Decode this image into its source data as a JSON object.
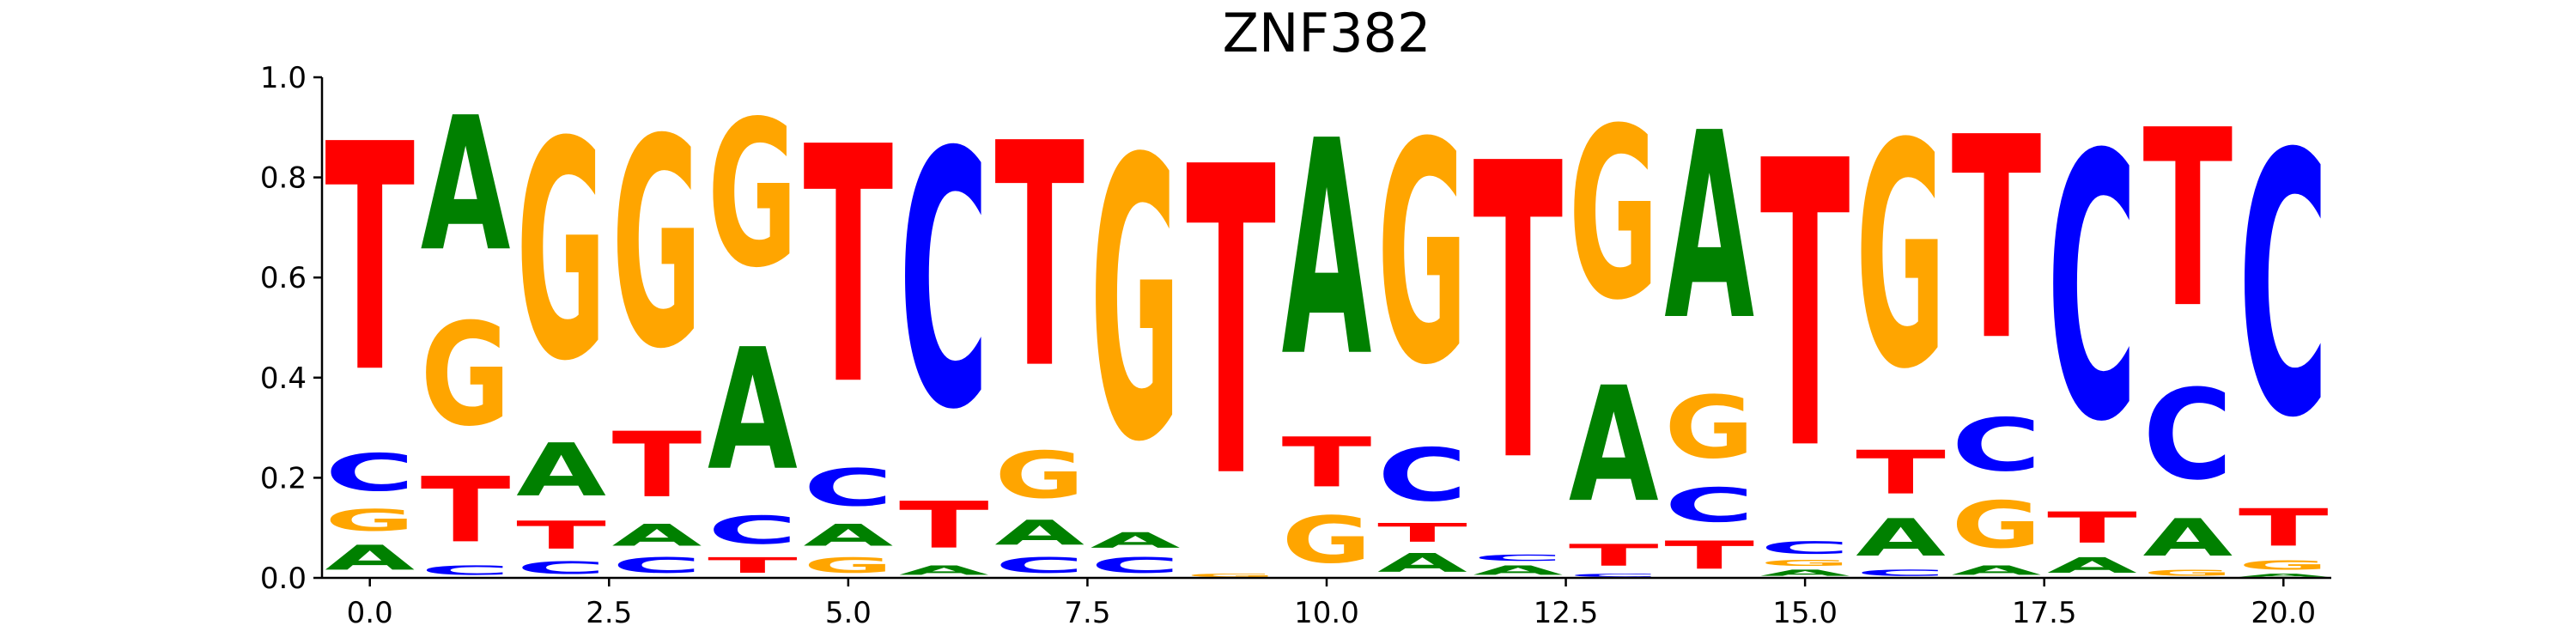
{
  "chart_data": {
    "type": "sequence-logo",
    "title": "ZNF382",
    "xlabel": "",
    "ylabel": "",
    "xlim": [
      -0.5,
      20.5
    ],
    "ylim": [
      0,
      1
    ],
    "x_ticks": [
      0,
      2.5,
      5,
      7.5,
      10,
      12.5,
      15,
      17.5,
      20
    ],
    "x_tick_labels": [
      "0.0",
      "2.5",
      "5.0",
      "7.5",
      "10.0",
      "12.5",
      "15.0",
      "17.5",
      "20.0"
    ],
    "y_ticks": [
      0,
      0.2,
      0.4,
      0.6,
      0.8,
      1.0
    ],
    "y_tick_labels": [
      "0.0",
      "0.2",
      "0.4",
      "0.6",
      "0.8",
      "1.0"
    ],
    "grid": false,
    "colors": {
      "A": "#008000",
      "C": "#0000ff",
      "G": "#ffa500",
      "T": "#ff0000"
    },
    "positions": [
      {
        "x": 0,
        "stack": [
          [
            "A",
            0.08
          ],
          [
            "G",
            0.07
          ],
          [
            "C",
            0.12
          ],
          [
            "T",
            0.73
          ]
        ]
      },
      {
        "x": 1,
        "stack": [
          [
            "C",
            0.03
          ],
          [
            "T",
            0.21
          ],
          [
            "G",
            0.33
          ],
          [
            "A",
            0.43
          ]
        ]
      },
      {
        "x": 2,
        "stack": [
          [
            "C",
            0.04
          ],
          [
            "T",
            0.09
          ],
          [
            "A",
            0.17
          ],
          [
            "G",
            0.7
          ]
        ]
      },
      {
        "x": 3,
        "stack": [
          [
            "C",
            0.05
          ],
          [
            "A",
            0.07
          ],
          [
            "T",
            0.21
          ],
          [
            "G",
            0.67
          ]
        ]
      },
      {
        "x": 4,
        "stack": [
          [
            "T",
            0.05
          ],
          [
            "C",
            0.09
          ],
          [
            "A",
            0.39
          ],
          [
            "G",
            0.47
          ]
        ]
      },
      {
        "x": 5,
        "stack": [
          [
            "G",
            0.05
          ],
          [
            "A",
            0.07
          ],
          [
            "C",
            0.12
          ],
          [
            "T",
            0.76
          ]
        ]
      },
      {
        "x": 6,
        "stack": [
          [
            "A",
            0.03
          ],
          [
            "T",
            0.15
          ],
          [
            "C",
            0.82
          ]
        ]
      },
      {
        "x": 7,
        "stack": [
          [
            "C",
            0.05
          ],
          [
            "A",
            0.08
          ],
          [
            "G",
            0.15
          ],
          [
            "T",
            0.72
          ]
        ]
      },
      {
        "x": 8,
        "stack": [
          [
            "C",
            0.05
          ],
          [
            "A",
            0.05
          ],
          [
            "G",
            0.9
          ]
        ]
      },
      {
        "x": 9,
        "stack": [
          [
            "G",
            0.01
          ],
          [
            "T",
            0.99
          ]
        ]
      },
      {
        "x": 10,
        "stack": [
          [
            "G",
            0.15
          ],
          [
            "T",
            0.16
          ],
          [
            "A",
            0.69
          ]
        ]
      },
      {
        "x": 11,
        "stack": [
          [
            "A",
            0.06
          ],
          [
            "T",
            0.06
          ],
          [
            "C",
            0.17
          ],
          [
            "G",
            0.71
          ]
        ]
      },
      {
        "x": 12,
        "stack": [
          [
            "A",
            0.03
          ],
          [
            "C",
            0.02
          ],
          [
            "T",
            0.95
          ]
        ]
      },
      {
        "x": 13,
        "stack": [
          [
            "C",
            0.01
          ],
          [
            "T",
            0.07
          ],
          [
            "A",
            0.37
          ],
          [
            "G",
            0.55
          ]
        ]
      },
      {
        "x": 14,
        "stack": [
          [
            "T",
            0.09
          ],
          [
            "C",
            0.11
          ],
          [
            "G",
            0.2
          ],
          [
            "A",
            0.6
          ]
        ]
      },
      {
        "x": 15,
        "stack": [
          [
            "A",
            0.02
          ],
          [
            "G",
            0.02
          ],
          [
            "C",
            0.04
          ],
          [
            "T",
            0.92
          ]
        ]
      },
      {
        "x": 16,
        "stack": [
          [
            "C",
            0.02
          ],
          [
            "A",
            0.12
          ],
          [
            "T",
            0.14
          ],
          [
            "G",
            0.72
          ]
        ]
      },
      {
        "x": 17,
        "stack": [
          [
            "A",
            0.03
          ],
          [
            "G",
            0.15
          ],
          [
            "C",
            0.17
          ],
          [
            "T",
            0.65
          ]
        ]
      },
      {
        "x": 18,
        "stack": [
          [
            "A",
            0.05
          ],
          [
            "T",
            0.1
          ],
          [
            "C",
            0.85
          ]
        ]
      },
      {
        "x": 19,
        "stack": [
          [
            "G",
            0.02
          ],
          [
            "A",
            0.12
          ],
          [
            "C",
            0.29
          ],
          [
            "T",
            0.57
          ]
        ]
      },
      {
        "x": 20,
        "stack": [
          [
            "A",
            0.01
          ],
          [
            "G",
            0.03
          ],
          [
            "T",
            0.12
          ],
          [
            "C",
            0.84
          ]
        ]
      }
    ]
  }
}
